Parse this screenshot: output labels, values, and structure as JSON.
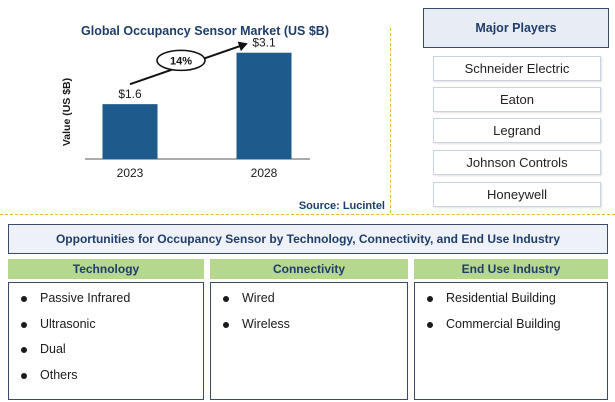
{
  "chart_data": {
    "type": "bar",
    "title": "Global Occupancy Sensor Market (US $B)",
    "ylabel": "Value (US $B)",
    "categories": [
      "2023",
      "2028"
    ],
    "values": [
      1.6,
      3.1
    ],
    "value_labels": [
      "$1.6",
      "$3.1"
    ],
    "ylim": [
      0,
      3.5
    ],
    "cagr_label": "14%",
    "bar_color": "#1f5a8c",
    "source": "Source: Lucintel"
  },
  "players": {
    "title": "Major Players",
    "items": [
      "Schneider Electric",
      "Eaton",
      "Legrand",
      "Johnson Controls",
      "Honeywell"
    ]
  },
  "opportunities": {
    "title": "Opportunities for Occupancy Sensor by Technology, Connectivity, and End Use Industry",
    "columns": [
      {
        "title": "Technology",
        "items": [
          "Passive Infrared",
          "Ultrasonic",
          "Dual",
          "Others"
        ]
      },
      {
        "title": "Connectivity",
        "items": [
          "Wired",
          "Wireless"
        ]
      },
      {
        "title": "End Use Industry",
        "items": [
          "Residential Building",
          "Commercial Building"
        ]
      }
    ]
  },
  "colors": {
    "accent": "#1f3d6b",
    "header_green": "#b6d78e",
    "divider": "#e8b830"
  }
}
